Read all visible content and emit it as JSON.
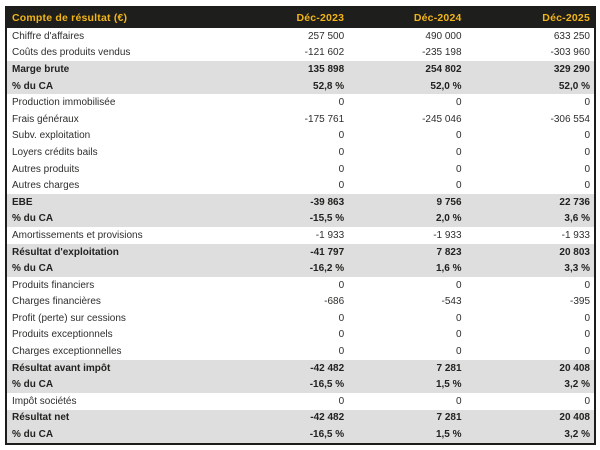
{
  "colors": {
    "header_bg": "#1e1e1c",
    "header_text": "#f2b519",
    "row_alt_bg": "#dedede",
    "border": "#1c1c1a",
    "text": "#2e2e2c"
  },
  "table": {
    "header": {
      "label": "Compte de résultat (€)",
      "columns": [
        "Déc-2023",
        "Déc-2024",
        "Déc-2025"
      ]
    },
    "rows": [
      {
        "label": "Chiffre d'affaires",
        "values": [
          "257 500",
          "490 000",
          "633 250"
        ],
        "emphasis": false
      },
      {
        "label": "Coûts des produits vendus",
        "values": [
          "-121 602",
          "-235 198",
          "-303 960"
        ],
        "emphasis": false
      },
      {
        "label": "Marge brute",
        "values": [
          "135 898",
          "254 802",
          "329 290"
        ],
        "emphasis": true
      },
      {
        "label": "% du CA",
        "values": [
          "52,8 %",
          "52,0 %",
          "52,0 %"
        ],
        "emphasis": true
      },
      {
        "label": "Production immobilisée",
        "values": [
          "0",
          "0",
          "0"
        ],
        "emphasis": false
      },
      {
        "label": "Frais généraux",
        "values": [
          "-175 761",
          "-245 046",
          "-306 554"
        ],
        "emphasis": false
      },
      {
        "label": "Subv. exploitation",
        "values": [
          "0",
          "0",
          "0"
        ],
        "emphasis": false
      },
      {
        "label": "Loyers crédits bails",
        "values": [
          "0",
          "0",
          "0"
        ],
        "emphasis": false
      },
      {
        "label": "Autres produits",
        "values": [
          "0",
          "0",
          "0"
        ],
        "emphasis": false
      },
      {
        "label": "Autres charges",
        "values": [
          "0",
          "0",
          "0"
        ],
        "emphasis": false
      },
      {
        "label": "EBE",
        "values": [
          "-39 863",
          "9 756",
          "22 736"
        ],
        "emphasis": true
      },
      {
        "label": "% du CA",
        "values": [
          "-15,5 %",
          "2,0 %",
          "3,6 %"
        ],
        "emphasis": true
      },
      {
        "label": "Amortissements et provisions",
        "values": [
          "-1 933",
          "-1 933",
          "-1 933"
        ],
        "emphasis": false
      },
      {
        "label": "Résultat d'exploitation",
        "values": [
          "-41 797",
          "7 823",
          "20 803"
        ],
        "emphasis": true
      },
      {
        "label": "% du CA",
        "values": [
          "-16,2 %",
          "1,6 %",
          "3,3 %"
        ],
        "emphasis": true
      },
      {
        "label": "Produits financiers",
        "values": [
          "0",
          "0",
          "0"
        ],
        "emphasis": false
      },
      {
        "label": "Charges financières",
        "values": [
          "-686",
          "-543",
          "-395"
        ],
        "emphasis": false
      },
      {
        "label": "Profit (perte) sur cessions",
        "values": [
          "0",
          "0",
          "0"
        ],
        "emphasis": false
      },
      {
        "label": "Produits exceptionnels",
        "values": [
          "0",
          "0",
          "0"
        ],
        "emphasis": false
      },
      {
        "label": "Charges exceptionnelles",
        "values": [
          "0",
          "0",
          "0"
        ],
        "emphasis": false
      },
      {
        "label": "Résultat avant impôt",
        "values": [
          "-42 482",
          "7 281",
          "20 408"
        ],
        "emphasis": true
      },
      {
        "label": "% du CA",
        "values": [
          "-16,5 %",
          "1,5 %",
          "3,2 %"
        ],
        "emphasis": true
      },
      {
        "label": "Impôt sociétés",
        "values": [
          "0",
          "0",
          "0"
        ],
        "emphasis": false
      },
      {
        "label": "Résultat net",
        "values": [
          "-42 482",
          "7 281",
          "20 408"
        ],
        "emphasis": true
      },
      {
        "label": "% du CA",
        "values": [
          "-16,5 %",
          "1,5 %",
          "3,2 %"
        ],
        "emphasis": true
      }
    ]
  }
}
